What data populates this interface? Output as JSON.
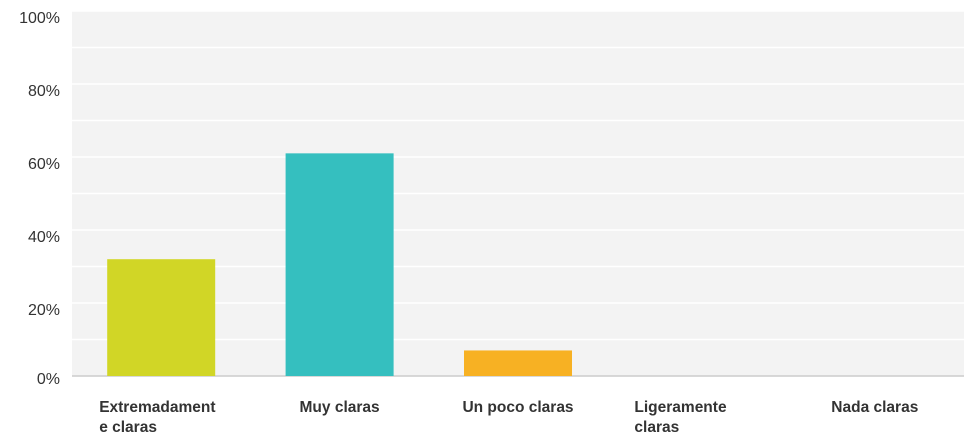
{
  "chart_data": {
    "type": "bar",
    "categories": [
      "Extremadamente claras",
      "Muy claras",
      "Un poco claras",
      "Ligeramente claras",
      "Nada claras"
    ],
    "values": [
      32,
      61,
      7,
      0,
      0
    ],
    "colors": [
      "#d1d626",
      "#35bfbf",
      "#f7b123",
      "#e35b62",
      "#9d76c1"
    ],
    "ylim": [
      0,
      100
    ],
    "yticks": [
      {
        "value": 0,
        "label": "0%"
      },
      {
        "value": 20,
        "label": "20%"
      },
      {
        "value": 40,
        "label": "40%"
      },
      {
        "value": 60,
        "label": "60%"
      },
      {
        "value": 80,
        "label": "80%"
      },
      {
        "value": 100,
        "label": "100%"
      }
    ],
    "minor_yticks": [
      10,
      30,
      50,
      70,
      90
    ],
    "grid": true
  }
}
